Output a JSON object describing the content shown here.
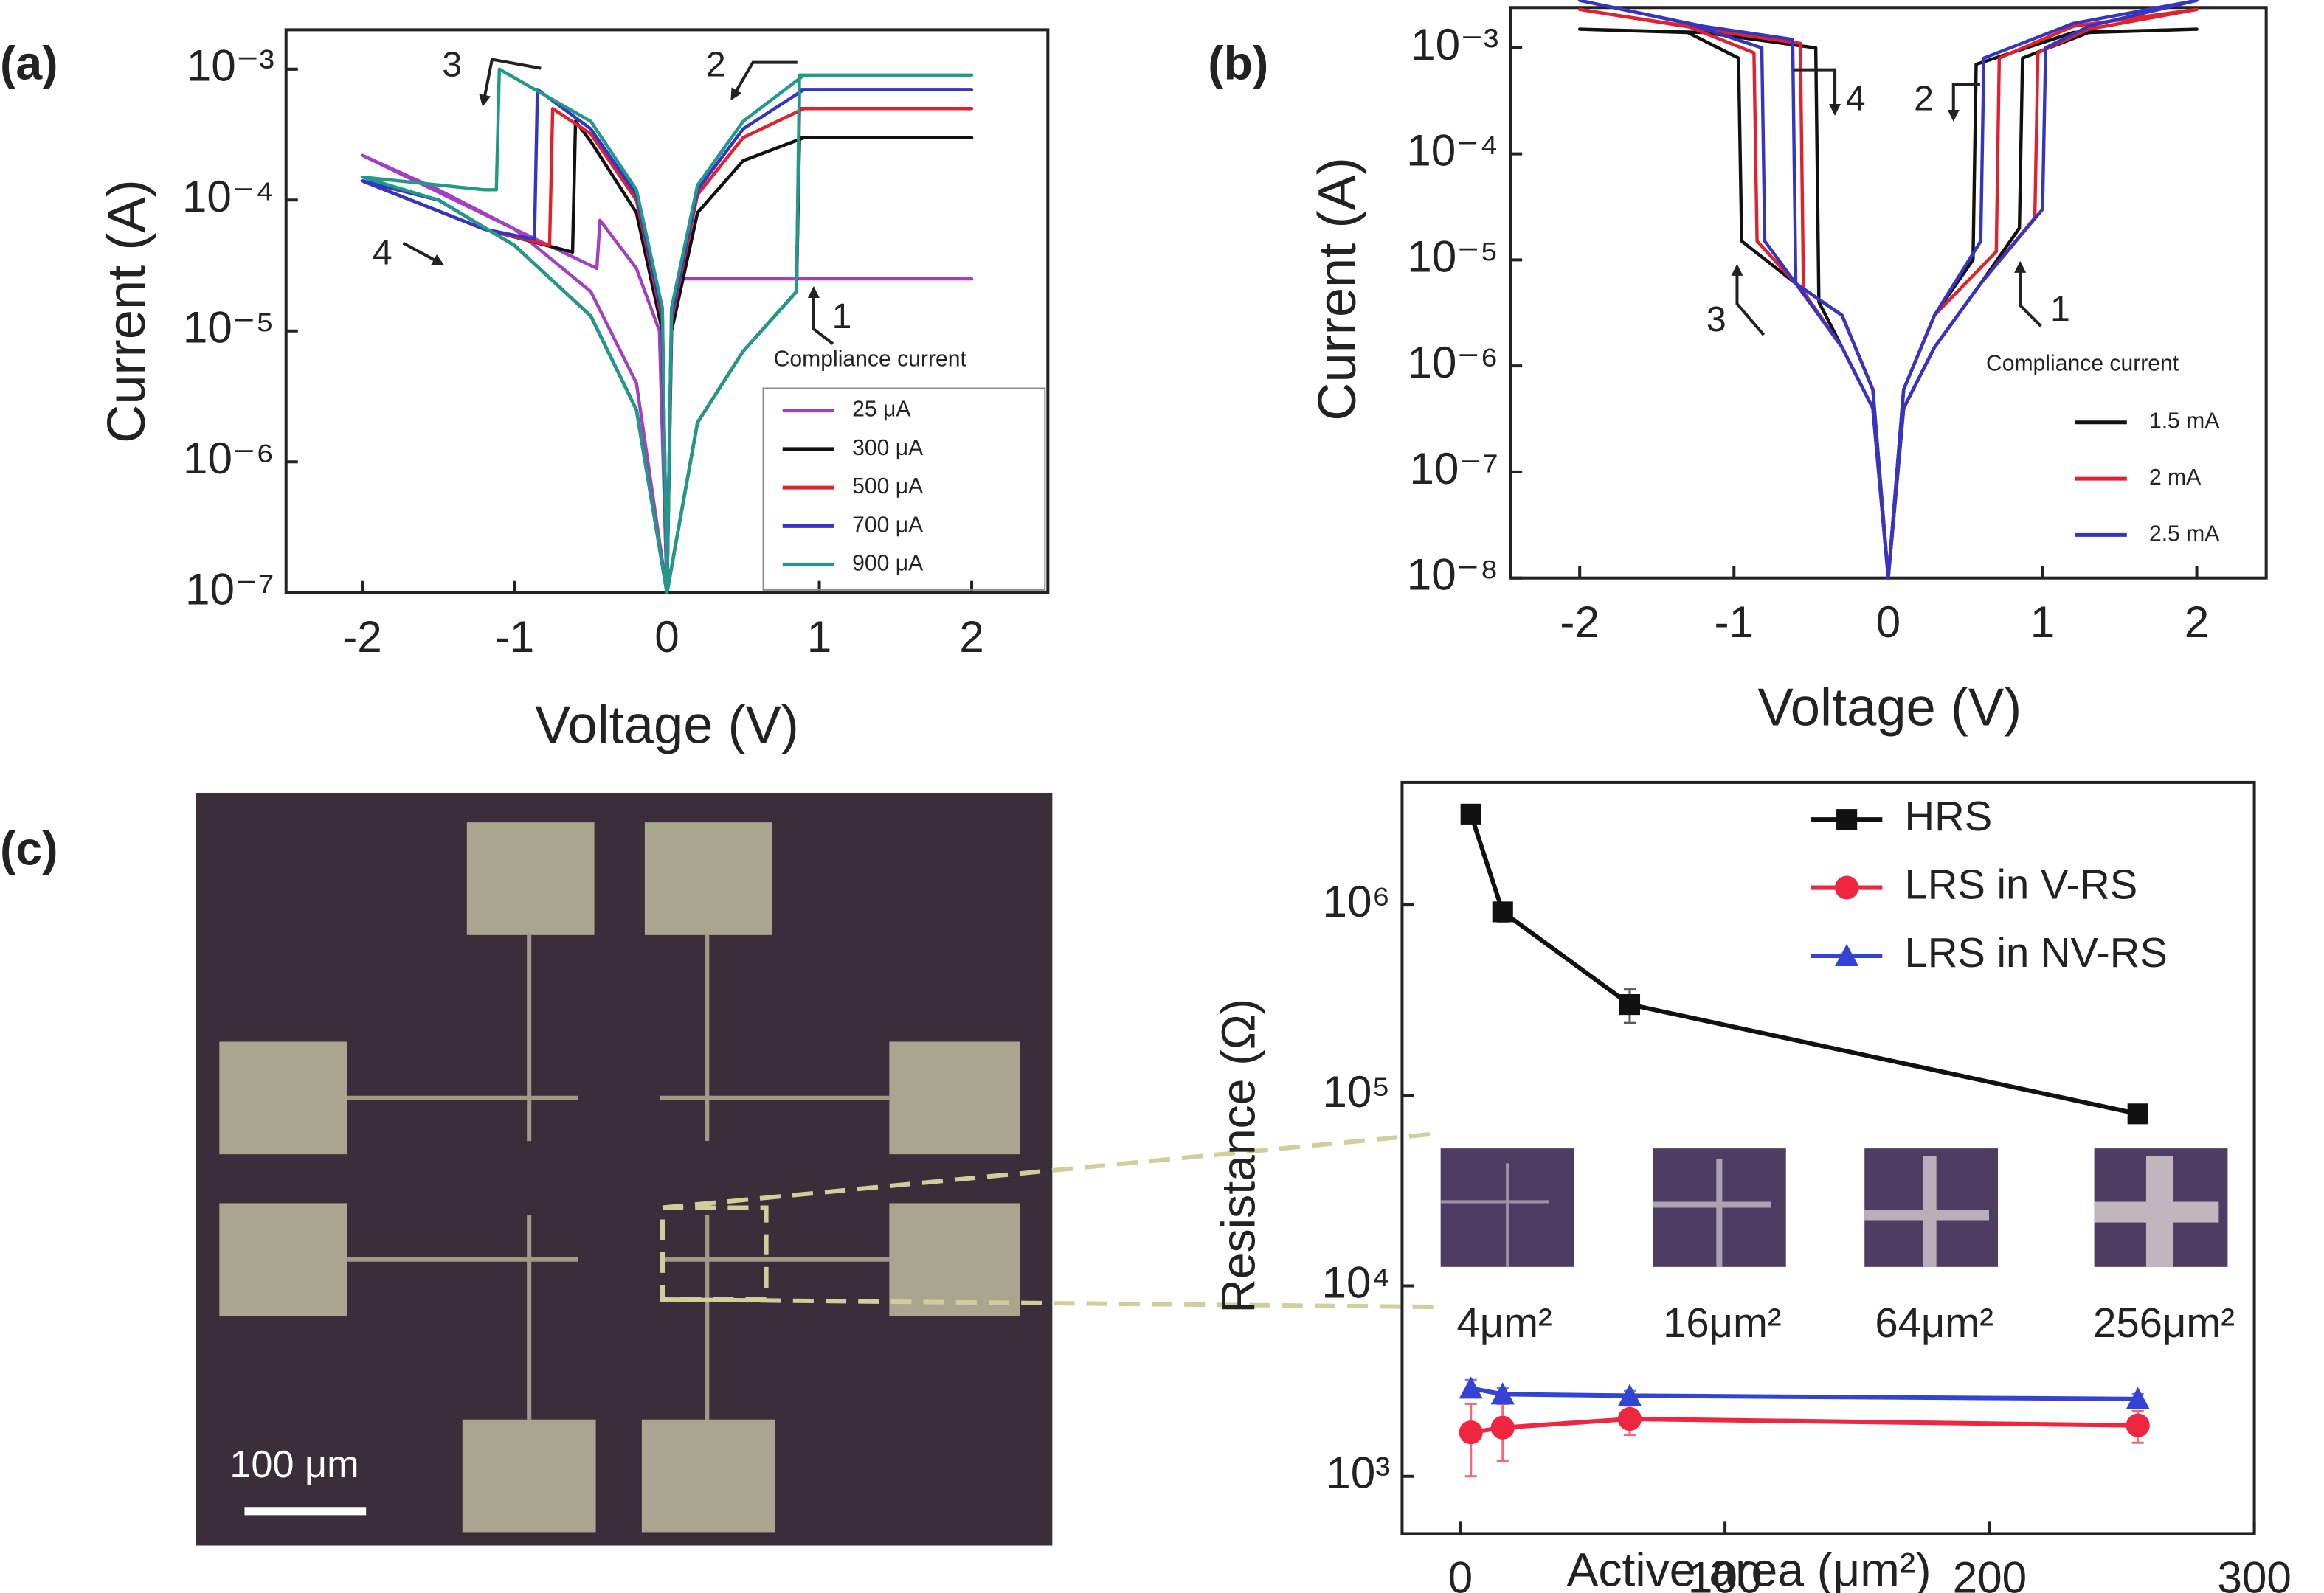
{
  "chart_data": [
    {
      "type": "line",
      "panel_label": "(a)",
      "xlabel": "Voltage (V)",
      "ylabel": "Current (A)",
      "log_y": true,
      "xlim": [
        -2.5,
        2.5
      ],
      "xticks": [
        -2,
        -1,
        0,
        1,
        2
      ],
      "ylim": [
        1e-07,
        0.002
      ],
      "yticks": [
        {
          "value": 1e-07,
          "label": "10⁻⁷"
        },
        {
          "value": 1e-06,
          "label": "10⁻⁶"
        },
        {
          "value": 1e-05,
          "label": "10⁻⁵"
        },
        {
          "value": 0.0001,
          "label": "10⁻⁴"
        },
        {
          "value": 0.001,
          "label": "10⁻³"
        }
      ],
      "legend_title": "Compliance current",
      "annotations": [
        "1",
        "2",
        "3",
        "4"
      ],
      "series": [
        {
          "name": "25 μA",
          "color": "#a23fc4",
          "x": [
            0,
            0.03,
            0.1,
            2,
            0.1,
            0.03,
            0,
            -0.05,
            -0.2,
            -0.44,
            -0.46,
            -1,
            -2,
            -1.5,
            -1,
            -0.5,
            -0.2,
            0
          ],
          "values": [
            1e-07,
            1.5e-05,
            2.5e-05,
            2.5e-05,
            2.5e-05,
            1.5e-05,
            1e-07,
            1e-05,
            3e-05,
            7e-05,
            3e-05,
            6e-05,
            0.00022,
            0.00012,
            6e-05,
            2e-05,
            4e-06,
            1e-07
          ]
        },
        {
          "name": "300 μA",
          "color": "#111111",
          "x": [
            0,
            0.2,
            0.5,
            0.85,
            0.87,
            2,
            0.9,
            0.5,
            0.2,
            0.03,
            0,
            -0.03,
            -0.2,
            -0.5,
            -0.6,
            -0.62,
            -1.2,
            -2,
            -1.5,
            -1,
            -0.5,
            -0.2,
            0
          ],
          "values": [
            1e-07,
            2e-06,
            7e-06,
            2e-05,
            0.0003,
            0.0003,
            0.0003,
            0.0002,
            8e-05,
            1e-05,
            1e-07,
            1e-05,
            8e-05,
            0.00028,
            0.0004,
            4e-05,
            6e-05,
            0.00014,
            0.0001,
            4.5e-05,
            1.3e-05,
            2.5e-06,
            1e-07
          ]
        },
        {
          "name": "500 μA",
          "color": "#e3202e",
          "x": [
            0,
            0.2,
            0.5,
            0.85,
            0.87,
            2,
            0.9,
            0.5,
            0.2,
            0.03,
            0,
            -0.03,
            -0.2,
            -0.5,
            -0.75,
            -0.77,
            -1.2,
            -2,
            -1.5,
            -1,
            -0.5,
            -0.2,
            0
          ],
          "values": [
            1e-07,
            2e-06,
            7e-06,
            2e-05,
            0.0005,
            0.0005,
            0.0005,
            0.0003,
            0.00011,
            1.2e-05,
            1e-07,
            1.2e-05,
            0.0001,
            0.00032,
            0.0005,
            4.5e-05,
            6e-05,
            0.00014,
            0.0001,
            4.5e-05,
            1.3e-05,
            2.5e-06,
            1e-07
          ]
        },
        {
          "name": "700 μA",
          "color": "#3535c4",
          "x": [
            0,
            0.2,
            0.5,
            0.85,
            0.87,
            2,
            0.9,
            0.5,
            0.2,
            0.03,
            0,
            -0.03,
            -0.2,
            -0.5,
            -0.85,
            -0.87,
            -1.2,
            -2,
            -1.5,
            -1,
            -0.5,
            -0.2,
            0
          ],
          "values": [
            1e-07,
            2e-06,
            7e-06,
            2e-05,
            0.0007,
            0.0007,
            0.0007,
            0.00035,
            0.00012,
            1.3e-05,
            1e-07,
            1.3e-05,
            0.00011,
            0.00035,
            0.0007,
            5e-05,
            6e-05,
            0.00014,
            0.0001,
            4.5e-05,
            1.3e-05,
            2.5e-06,
            1e-07
          ]
        },
        {
          "name": "900 μA",
          "color": "#1f9a8a",
          "x": [
            0,
            0.2,
            0.5,
            0.85,
            0.87,
            2,
            0.9,
            0.5,
            0.2,
            0.03,
            0,
            -0.03,
            -0.2,
            -0.5,
            -1.1,
            -1.12,
            -1.2,
            -2,
            -1.5,
            -1,
            -0.5,
            -0.2,
            0
          ],
          "values": [
            1e-07,
            2e-06,
            7e-06,
            2e-05,
            0.0009,
            0.0009,
            0.0009,
            0.0004,
            0.00013,
            1.5e-05,
            1e-07,
            1.5e-05,
            0.00012,
            0.0004,
            0.001,
            0.00012,
            0.00012,
            0.00015,
            0.0001,
            4.5e-05,
            1.3e-05,
            2.5e-06,
            1e-07
          ]
        }
      ]
    },
    {
      "type": "line",
      "panel_label": "(b)",
      "xlabel": "Voltage (V)",
      "ylabel": "Current (A)",
      "log_y": true,
      "xlim": [
        -2.45,
        2.45
      ],
      "xticks": [
        -2,
        -1,
        0,
        1,
        2
      ],
      "ylim": [
        1e-08,
        0.0024
      ],
      "yticks": [
        {
          "value": 1e-08,
          "label": "10⁻⁸"
        },
        {
          "value": 1e-07,
          "label": "10⁻⁷"
        },
        {
          "value": 1e-06,
          "label": "10⁻⁶"
        },
        {
          "value": 1e-05,
          "label": "10⁻⁵"
        },
        {
          "value": 0.0001,
          "label": "10⁻⁴"
        },
        {
          "value": 0.001,
          "label": "10⁻³"
        }
      ],
      "legend_title": "Compliance current",
      "annotations": [
        "1",
        "2",
        "3",
        "4"
      ],
      "series": [
        {
          "name": "1.5 mA",
          "color": "#111111",
          "x": [
            0,
            0.1,
            0.3,
            0.6,
            0.85,
            0.87,
            1.3,
            2,
            1.2,
            0.57,
            0.55,
            0.3,
            0.1,
            0,
            -0.1,
            -0.3,
            -0.6,
            -0.95,
            -0.97,
            -1.3,
            -2,
            -1.2,
            -0.47,
            -0.45,
            -0.3,
            -0.1,
            0
          ],
          "values": [
            1e-08,
            4e-07,
            1.5e-06,
            6e-06,
            2e-05,
            0.0008,
            0.0014,
            0.0015,
            0.0014,
            0.0007,
            1e-05,
            3e-06,
            6e-07,
            1e-08,
            6e-07,
            3e-06,
            6e-06,
            1.5e-05,
            0.0008,
            0.0014,
            0.0015,
            0.0014,
            0.001,
            4e-06,
            1.5e-06,
            4e-07,
            1e-08
          ]
        },
        {
          "name": "2 mA",
          "color": "#e3202e",
          "x": [
            0,
            0.1,
            0.3,
            0.6,
            0.95,
            0.97,
            1.3,
            2,
            1.2,
            0.72,
            0.7,
            0.3,
            0.1,
            0,
            -0.1,
            -0.3,
            -0.6,
            -0.85,
            -0.87,
            -1.3,
            -2,
            -1.2,
            -0.57,
            -0.55,
            -0.3,
            -0.1,
            0
          ],
          "values": [
            1e-08,
            4e-07,
            1.5e-06,
            6e-06,
            2.5e-05,
            0.0009,
            0.0015,
            0.0023,
            0.0016,
            0.0008,
            1.2e-05,
            3e-06,
            6e-07,
            1e-08,
            6e-07,
            3e-06,
            6e-06,
            1.5e-05,
            0.0009,
            0.0016,
            0.0023,
            0.0015,
            0.0011,
            5e-06,
            1.5e-06,
            4e-07,
            1e-08
          ]
        },
        {
          "name": "2.5 mA",
          "color": "#3535c4",
          "x": [
            0,
            0.1,
            0.3,
            0.6,
            1,
            1.02,
            1.3,
            2,
            1.2,
            0.62,
            0.6,
            0.3,
            0.1,
            0,
            -0.1,
            -0.3,
            -0.6,
            -0.8,
            -0.82,
            -1.3,
            -2,
            -1.2,
            -0.62,
            -0.6,
            -0.3,
            -0.1,
            0
          ],
          "values": [
            1e-08,
            4e-07,
            1.5e-06,
            6e-06,
            3e-05,
            0.001,
            0.0016,
            0.0028,
            0.0017,
            0.0008,
            1.5e-05,
            3e-06,
            6e-07,
            1e-08,
            6e-07,
            3e-06,
            6e-06,
            1.5e-05,
            0.001,
            0.0017,
            0.0028,
            0.0016,
            0.0012,
            6e-06,
            1.5e-06,
            4e-07,
            1e-08
          ]
        }
      ]
    },
    {
      "type": "scatter_line",
      "panel_label": "(c)",
      "xlabel": "Active area (μm²)",
      "ylabel": "Resistance (Ω)",
      "log_y": true,
      "xlim": [
        -22,
        300
      ],
      "xticks": [
        0,
        100,
        200,
        300
      ],
      "ylim": [
        500,
        4400000
      ],
      "yticks": [
        {
          "value": 1000,
          "label": "10³"
        },
        {
          "value": 10000,
          "label": "10⁴"
        },
        {
          "value": 100000,
          "label": "10⁵"
        },
        {
          "value": 1000000,
          "label": "10⁶"
        }
      ],
      "inset_labels": [
        "4μm²",
        "16μm²",
        "64μm²",
        "256μm²"
      ],
      "scale_label": "100 μm",
      "series": [
        {
          "name": "HRS",
          "color": "#111111",
          "marker": "square",
          "x": [
            4,
            16,
            64,
            256
          ],
          "values": [
            3000000,
            920000,
            300000,
            80000
          ],
          "errors": [
            200000,
            100000,
            60000,
            8000
          ]
        },
        {
          "name": "LRS in V-RS",
          "color": "#ee2640",
          "marker": "circle",
          "x": [
            4,
            16,
            64,
            256
          ],
          "values": [
            1700,
            1800,
            2000,
            1850
          ],
          "errors": [
            700,
            600,
            350,
            350
          ]
        },
        {
          "name": "LRS in NV-RS",
          "color": "#3344d4",
          "marker": "triangle",
          "x": [
            4,
            16,
            64,
            256
          ],
          "values": [
            2900,
            2700,
            2650,
            2550
          ],
          "errors": [
            300,
            200,
            150,
            150
          ]
        }
      ]
    }
  ]
}
